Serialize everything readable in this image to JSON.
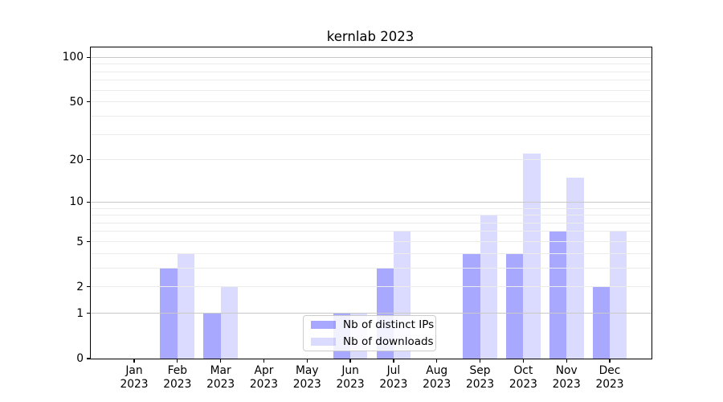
{
  "chart_data": {
    "type": "bar",
    "title": "kernlab 2023",
    "categories": [
      "Jan 2023",
      "Feb 2023",
      "Mar 2023",
      "Apr 2023",
      "May 2023",
      "Jun 2023",
      "Jul 2023",
      "Aug 2023",
      "Sep 2023",
      "Oct 2023",
      "Nov 2023",
      "Dec 2023"
    ],
    "series": [
      {
        "name": "Nb of distinct IPs",
        "color": "rgba(0,0,255,0.34)",
        "values": [
          0,
          3,
          1,
          0,
          0,
          1,
          3,
          0,
          4,
          4,
          6,
          2
        ]
      },
      {
        "name": "Nb of downloads",
        "color": "rgba(0,0,255,0.14)",
        "values": [
          0,
          4,
          2,
          0,
          0,
          1,
          6,
          0,
          8,
          22,
          15,
          6
        ]
      }
    ],
    "xlabel": "",
    "ylabel": "",
    "y_axis": {
      "scale": "log1p",
      "ticks": [
        0,
        1,
        2,
        5,
        10,
        20,
        50,
        100
      ],
      "major_gridlines": [
        1,
        10,
        100
      ],
      "minor_gridlines": [
        2,
        3,
        4,
        5,
        6,
        7,
        8,
        9,
        20,
        30,
        40,
        50,
        60,
        70,
        80,
        90
      ],
      "ylim": [
        0,
        116
      ]
    },
    "grid": true,
    "legend_position": "lower center",
    "colors": {
      "bar_distinct_ips": "rgba(0,0,255,0.34)",
      "bar_downloads": "rgba(0,0,255,0.14)",
      "major_grid": "#c9c9c9",
      "minor_grid": "#ececec",
      "spine": "#000000",
      "background": "#ffffff"
    }
  }
}
